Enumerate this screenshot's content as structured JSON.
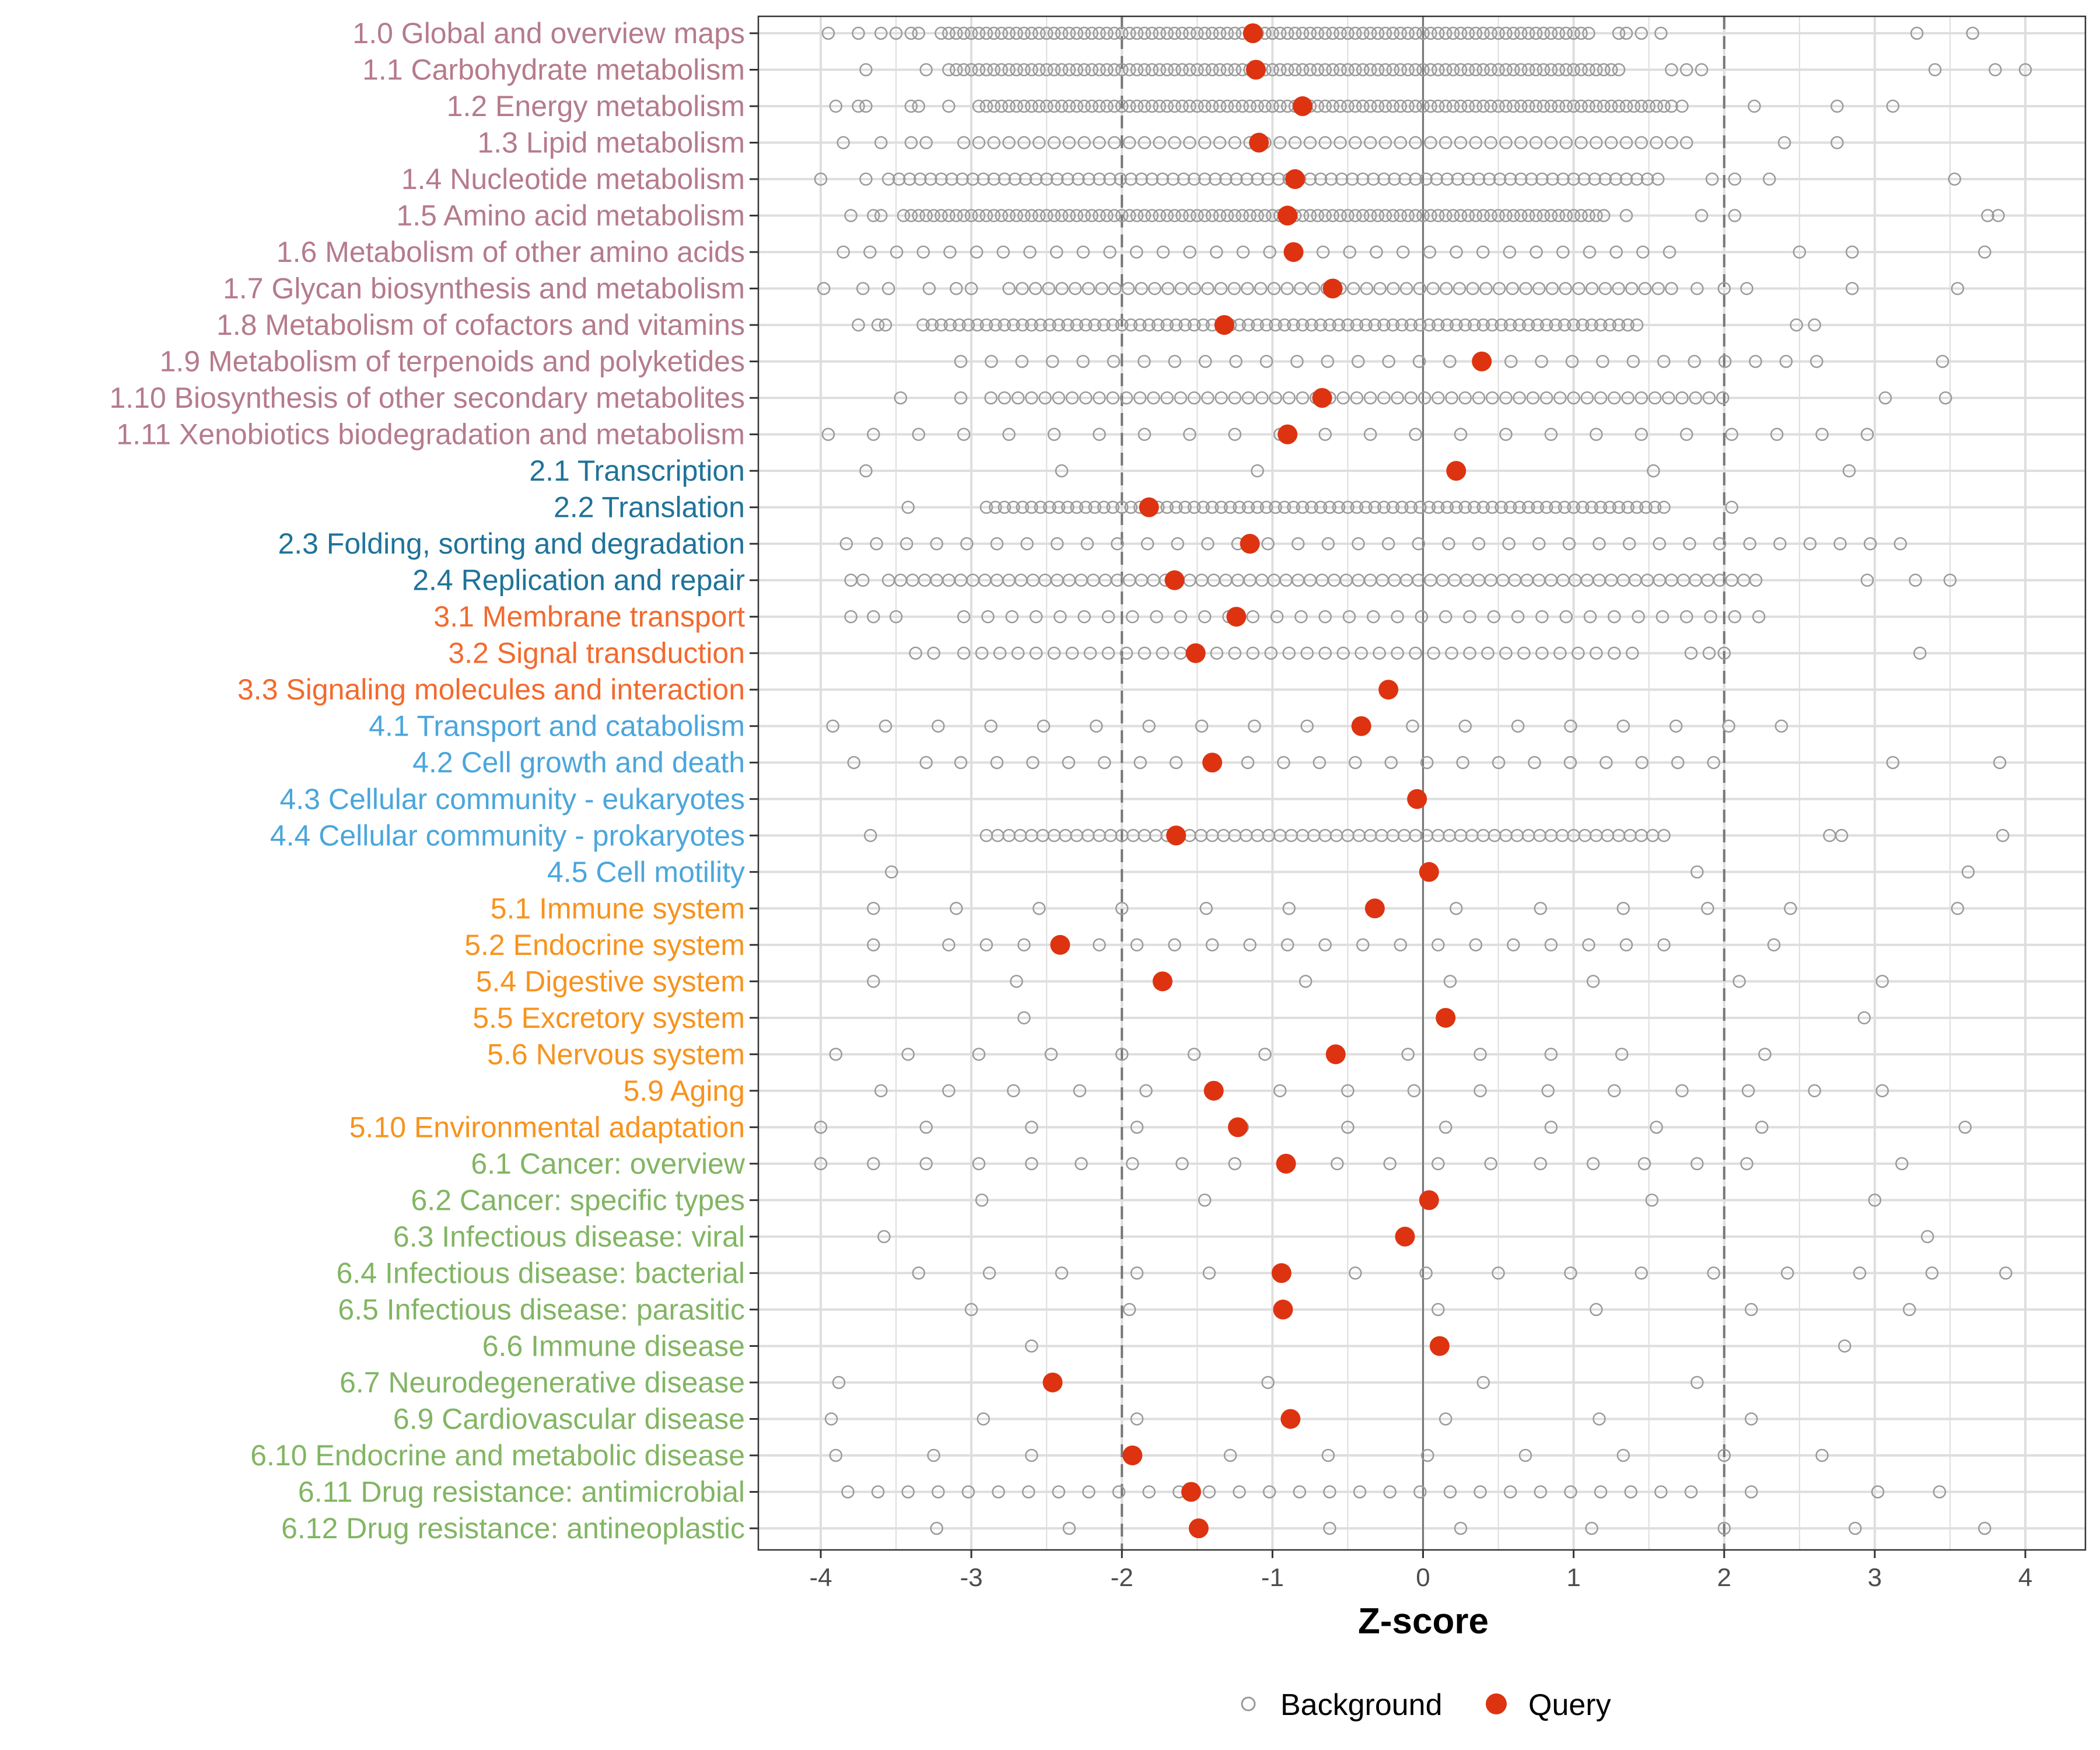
{
  "chart_data": {
    "type": "scatter",
    "xlabel": "Z-score",
    "ylabel": "",
    "xlim": [
      -4.4,
      4.4
    ],
    "xticks": [
      -4,
      -3,
      -2,
      -1,
      0,
      1,
      2,
      3,
      4
    ],
    "xtick_labels": [
      "-4",
      "-3",
      "-2",
      "-1",
      "0",
      "1",
      "2",
      "3",
      "4"
    ],
    "reference_lines": {
      "dashed": [
        -2,
        2
      ],
      "solid": [
        0
      ]
    },
    "grid": true,
    "legend": {
      "placement": "bottom",
      "entries": [
        "Background",
        "Query"
      ]
    },
    "colors": {
      "background": "#9a9a9a",
      "query": "#dd3311",
      "group1": "#b57b8c",
      "group2": "#1f7399",
      "group3": "#f26a2e",
      "group4": "#4ba6dc",
      "group5": "#f7931e",
      "group6": "#82b563"
    },
    "categories": [
      {
        "label": "1.0 Global and overview maps",
        "group": 1,
        "query": -1.13,
        "bg": {
          "points": [
            -3.95,
            -3.75,
            -3.6,
            -3.5,
            -3.4,
            -3.35,
            1.3,
            1.35,
            1.45,
            1.58,
            3.28,
            3.65
          ],
          "runs": [
            [
              -3.2,
              1.1,
              0.05
            ]
          ]
        }
      },
      {
        "label": "1.1 Carbohydrate metabolism",
        "group": 1,
        "query": -1.11,
        "bg": {
          "points": [
            -3.7,
            -3.3,
            1.65,
            1.75,
            1.85,
            3.4,
            3.8,
            4.0
          ],
          "runs": [
            [
              -3.15,
              1.3,
              0.05
            ]
          ]
        }
      },
      {
        "label": "1.2 Energy metabolism",
        "group": 1,
        "query": -0.8,
        "bg": {
          "points": [
            -3.9,
            -3.75,
            -3.7,
            -3.4,
            -3.35,
            -3.15,
            1.72,
            2.2,
            2.75,
            3.12
          ],
          "runs": [
            [
              -2.95,
              1.65,
              0.05
            ]
          ]
        }
      },
      {
        "label": "1.3 Lipid metabolism",
        "group": 1,
        "query": -1.09,
        "bg": {
          "points": [
            -3.85,
            -3.6,
            -3.4,
            -3.3,
            2.4,
            2.75
          ],
          "runs": [
            [
              -3.05,
              1.75,
              0.1
            ]
          ]
        }
      },
      {
        "label": "1.4 Nucleotide metabolism",
        "group": 1,
        "query": -0.85,
        "bg": {
          "points": [
            -4.0,
            -3.7,
            1.92,
            2.07,
            2.3,
            3.53
          ],
          "runs": [
            [
              -3.55,
              1.6,
              0.07
            ]
          ]
        }
      },
      {
        "label": "1.5 Amino acid metabolism",
        "group": 1,
        "query": -0.9,
        "bg": {
          "points": [
            -3.8,
            -3.65,
            -3.6,
            1.35,
            1.85,
            2.07,
            3.75,
            3.82
          ],
          "runs": [
            [
              -3.45,
              1.2,
              0.05
            ]
          ]
        }
      },
      {
        "label": "1.6 Metabolism of other amino acids",
        "group": 1,
        "query": -0.86,
        "bg": {
          "points": [
            2.5,
            2.85,
            3.73
          ],
          "runs": [
            [
              -3.85,
              1.8,
              0.177
            ]
          ]
        }
      },
      {
        "label": "1.7 Glycan biosynthesis and metabolism",
        "group": 1,
        "query": -0.6,
        "bg": {
          "points": [
            -3.98,
            -3.72,
            -3.55,
            -3.28,
            -3.1,
            -3.0,
            1.82,
            2.0,
            2.15,
            2.85,
            3.55
          ],
          "runs": [
            [
              -2.75,
              1.65,
              0.088
            ]
          ]
        }
      },
      {
        "label": "1.8 Metabolism of cofactors and vitamins",
        "group": 1,
        "query": -1.32,
        "bg": {
          "points": [
            -3.75,
            -3.62,
            -3.57,
            2.48,
            2.6
          ],
          "runs": [
            [
              -3.32,
              1.45,
              0.06
            ]
          ]
        }
      },
      {
        "label": "1.9 Metabolism of terpenoids and polyketides",
        "group": 1,
        "query": 0.39,
        "bg": {
          "points": [
            3.45
          ],
          "runs": [
            [
              -3.07,
              2.63,
              0.203
            ]
          ]
        }
      },
      {
        "label": "1.10 Biosynthesis of other secondary metabolites",
        "group": 1,
        "query": -0.67,
        "bg": {
          "points": [
            -3.47,
            -3.07,
            3.07,
            3.47
          ],
          "runs": [
            [
              -2.87,
              2.05,
              0.09
            ]
          ]
        }
      },
      {
        "label": "1.11 Xenobiotics biodegradation and metabolism",
        "group": 1,
        "query": -0.9,
        "bg": {
          "points": [],
          "runs": [
            [
              -3.95,
              3.07,
              0.3
            ]
          ]
        }
      },
      {
        "label": "2.1 Transcription",
        "group": 2,
        "query": 0.22,
        "bg": {
          "points": [
            -3.7,
            -2.4,
            -1.1,
            1.53,
            2.83
          ],
          "runs": []
        }
      },
      {
        "label": "2.2 Translation",
        "group": 2,
        "query": -1.82,
        "bg": {
          "points": [
            -3.42,
            2.05
          ],
          "runs": [
            [
              -2.9,
              1.6,
              0.06
            ]
          ]
        }
      },
      {
        "label": "2.3 Folding, sorting and degradation",
        "group": 2,
        "query": -1.15,
        "bg": {
          "points": [],
          "runs": [
            [
              -3.83,
              3.17,
              0.2
            ]
          ]
        }
      },
      {
        "label": "2.4 Replication and repair",
        "group": 2,
        "query": -1.65,
        "bg": {
          "points": [
            -3.8,
            -3.72,
            2.95,
            3.27,
            3.5
          ],
          "runs": [
            [
              -3.55,
              2.27,
              0.08
            ]
          ]
        }
      },
      {
        "label": "3.1 Membrane transport",
        "group": 3,
        "query": -1.24,
        "bg": {
          "points": [
            -3.8,
            -3.65,
            -3.5
          ],
          "runs": [
            [
              -3.05,
              2.25,
              0.16
            ]
          ]
        }
      },
      {
        "label": "3.2 Signal transduction",
        "group": 3,
        "query": -1.51,
        "bg": {
          "points": [
            -3.37,
            -3.25,
            1.78,
            1.9,
            2.0,
            3.3
          ],
          "runs": [
            [
              -3.05,
              1.45,
              0.12
            ]
          ]
        }
      },
      {
        "label": "3.3 Signaling molecules and interaction",
        "group": 3,
        "query": -0.23,
        "bg": {
          "points": [],
          "runs": []
        }
      },
      {
        "label": "4.1 Transport and catabolism",
        "group": 4,
        "query": -0.41,
        "bg": {
          "points": [],
          "runs": [
            [
              -3.92,
              2.4,
              0.35
            ]
          ]
        }
      },
      {
        "label": "4.2 Cell growth and death",
        "group": 4,
        "query": -1.4,
        "bg": {
          "points": [
            -3.78,
            -3.3,
            -3.07,
            3.12,
            3.83
          ],
          "runs": [
            [
              -2.83,
              1.93,
              0.238
            ]
          ]
        }
      },
      {
        "label": "4.3 Cellular community - eukaryotes",
        "group": 4,
        "query": -0.04,
        "bg": {
          "points": [],
          "runs": []
        }
      },
      {
        "label": "4.4 Cellular community - prokaryotes",
        "group": 4,
        "query": -1.64,
        "bg": {
          "points": [
            -3.67,
            2.7,
            2.78,
            3.85
          ],
          "runs": [
            [
              -2.9,
              1.65,
              0.075
            ]
          ]
        }
      },
      {
        "label": "4.5 Cell motility",
        "group": 4,
        "query": 0.04,
        "bg": {
          "points": [
            -3.53,
            1.82,
            3.62
          ],
          "runs": []
        }
      },
      {
        "label": "5.1 Immune system",
        "group": 5,
        "query": -0.32,
        "bg": {
          "points": [
            -3.65,
            -3.1,
            -2.55,
            -2.0,
            -1.44,
            -0.89,
            -0.33,
            0.22,
            0.78,
            1.33,
            1.89,
            2.44,
            3.55
          ],
          "runs": []
        }
      },
      {
        "label": "5.2 Endocrine system",
        "group": 5,
        "query": -2.41,
        "bg": {
          "points": [
            -3.65,
            -3.15,
            -2.9,
            -2.65,
            2.33
          ],
          "runs": [
            [
              -2.4,
              1.6,
              0.25
            ]
          ]
        }
      },
      {
        "label": "5.4 Digestive system",
        "group": 5,
        "query": -1.73,
        "bg": {
          "points": [
            -3.65,
            -2.7,
            -0.78,
            0.18,
            1.13,
            2.1,
            3.05
          ],
          "runs": []
        }
      },
      {
        "label": "5.5 Excretory system",
        "group": 5,
        "query": 0.15,
        "bg": {
          "points": [
            -2.65,
            2.93
          ],
          "runs": []
        }
      },
      {
        "label": "5.6 Nervous system",
        "group": 5,
        "query": -0.58,
        "bg": {
          "points": [
            -3.9,
            -3.42,
            -2.95,
            -2.47,
            -2.0,
            -1.52,
            -1.05,
            -0.57,
            -0.1,
            0.38,
            0.85,
            1.32,
            2.27
          ],
          "runs": []
        }
      },
      {
        "label": "5.9 Aging",
        "group": 5,
        "query": -1.39,
        "bg": {
          "points": [
            -3.6,
            -3.15,
            -2.72,
            -2.28,
            -1.84,
            -1.4,
            -0.95,
            -0.5,
            -0.06,
            0.38,
            0.83,
            1.27,
            1.72,
            2.16,
            2.6,
            3.05
          ],
          "runs": []
        }
      },
      {
        "label": "5.10 Environmental adaptation",
        "group": 5,
        "query": -1.23,
        "bg": {
          "points": [
            -4.0,
            -3.3,
            -2.6,
            -1.9,
            -1.2,
            -0.5,
            0.15,
            0.85,
            1.55,
            2.25,
            3.6
          ],
          "runs": []
        }
      },
      {
        "label": "6.1 Cancer: overview",
        "group": 6,
        "query": -0.91,
        "bg": {
          "points": [
            -4.0,
            -3.65,
            -3.3,
            -2.95,
            -2.6,
            -2.27,
            -1.93,
            -1.6,
            -1.25,
            -0.9,
            -0.57,
            -0.22,
            0.1,
            0.45,
            0.78,
            1.13,
            1.47,
            1.82,
            2.15,
            3.18
          ],
          "runs": []
        }
      },
      {
        "label": "6.2 Cancer: specific types",
        "group": 6,
        "query": 0.04,
        "bg": {
          "points": [
            -2.93,
            -1.45,
            1.52,
            3.0
          ],
          "runs": []
        }
      },
      {
        "label": "6.3 Infectious disease: viral",
        "group": 6,
        "query": -0.12,
        "bg": {
          "points": [
            -3.58,
            3.35
          ],
          "runs": []
        }
      },
      {
        "label": "6.4 Infectious disease: bacterial",
        "group": 6,
        "query": -0.94,
        "bg": {
          "points": [
            -3.35,
            -2.88,
            -2.4,
            -1.9,
            -1.42,
            -0.95,
            -0.45,
            0.02,
            0.5,
            0.98,
            1.45,
            1.93,
            2.42,
            2.9,
            3.38,
            3.87
          ],
          "runs": []
        }
      },
      {
        "label": "6.5 Infectious disease: parasitic",
        "group": 6,
        "query": -0.93,
        "bg": {
          "points": [
            -3.0,
            -1.95,
            0.1,
            1.15,
            2.18,
            3.23
          ],
          "runs": []
        }
      },
      {
        "label": "6.6 Immune disease",
        "group": 6,
        "query": 0.11,
        "bg": {
          "points": [
            -2.6,
            2.8
          ],
          "runs": []
        }
      },
      {
        "label": "6.7 Neurodegenerative disease",
        "group": 6,
        "query": -2.46,
        "bg": {
          "points": [
            -3.88,
            -1.03,
            0.4,
            1.82
          ],
          "runs": []
        }
      },
      {
        "label": "6.9 Cardiovascular disease",
        "group": 6,
        "query": -0.88,
        "bg": {
          "points": [
            -3.93,
            -2.92,
            -1.9,
            -0.88,
            0.15,
            1.17,
            2.18
          ],
          "runs": []
        }
      },
      {
        "label": "6.10 Endocrine and metabolic disease",
        "group": 6,
        "query": -1.93,
        "bg": {
          "points": [
            -3.9,
            -3.25,
            -2.6,
            -1.93,
            -1.28,
            -0.63,
            0.03,
            0.68,
            1.33,
            2.0,
            2.65
          ],
          "runs": []
        }
      },
      {
        "label": "6.11 Drug resistance: antimicrobial",
        "group": 6,
        "query": -1.54,
        "bg": {
          "points": [
            2.18,
            3.02,
            3.43
          ],
          "runs": [
            [
              -3.82,
              1.78,
              0.2
            ]
          ]
        }
      },
      {
        "label": "6.12 Drug resistance: antineoplastic",
        "group": 6,
        "query": -1.49,
        "bg": {
          "points": [
            -3.23,
            -2.35,
            -1.48,
            -0.62,
            0.25,
            1.12,
            2.0,
            2.87,
            3.73
          ],
          "runs": []
        }
      }
    ]
  }
}
